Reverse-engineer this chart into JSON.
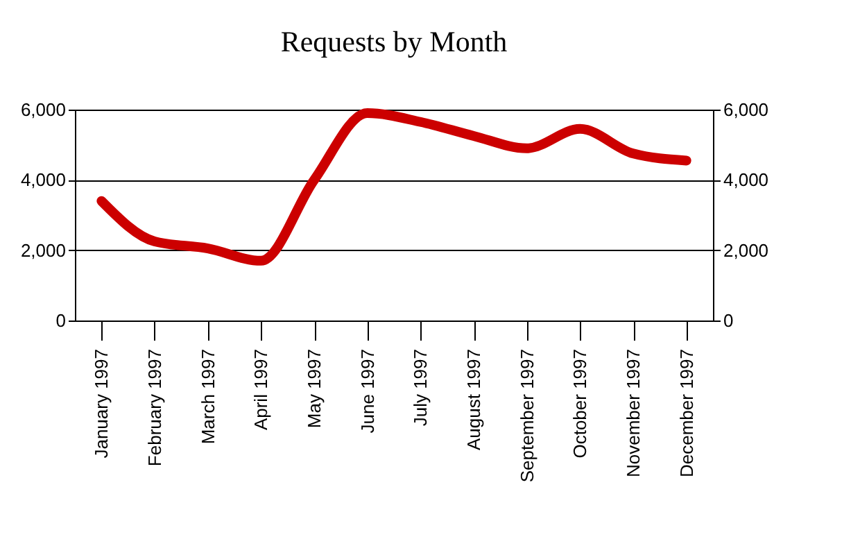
{
  "chart_data": {
    "type": "line",
    "title": "Requests by Month",
    "categories": [
      "January 1997",
      "February 1997",
      "March 1997",
      "April 1997",
      "May 1997",
      "June 1997",
      "July 1997",
      "August 1997",
      "September 1997",
      "October 1997",
      "November 1997",
      "December 1997"
    ],
    "series": [
      {
        "color": "#cc0000",
        "values": [
          3400,
          2250,
          2050,
          1700,
          4000,
          5900,
          5650,
          5250,
          4900,
          5450,
          4750,
          4550
        ]
      }
    ],
    "ylim": [
      0,
      6000
    ],
    "yticks": [
      0,
      {
        "value": 2000,
        "label": "2,000"
      },
      {
        "value": 4000,
        "label": "4,000"
      },
      {
        "value": 6000,
        "label": "6,000"
      }
    ],
    "y2lim": [
      0,
      6000
    ],
    "y2ticks": [
      0,
      {
        "value": 2000,
        "label": "2,000"
      },
      {
        "value": 4000,
        "label": "4,000"
      },
      {
        "value": 6000,
        "label": "6,000"
      }
    ],
    "grid": "y"
  }
}
